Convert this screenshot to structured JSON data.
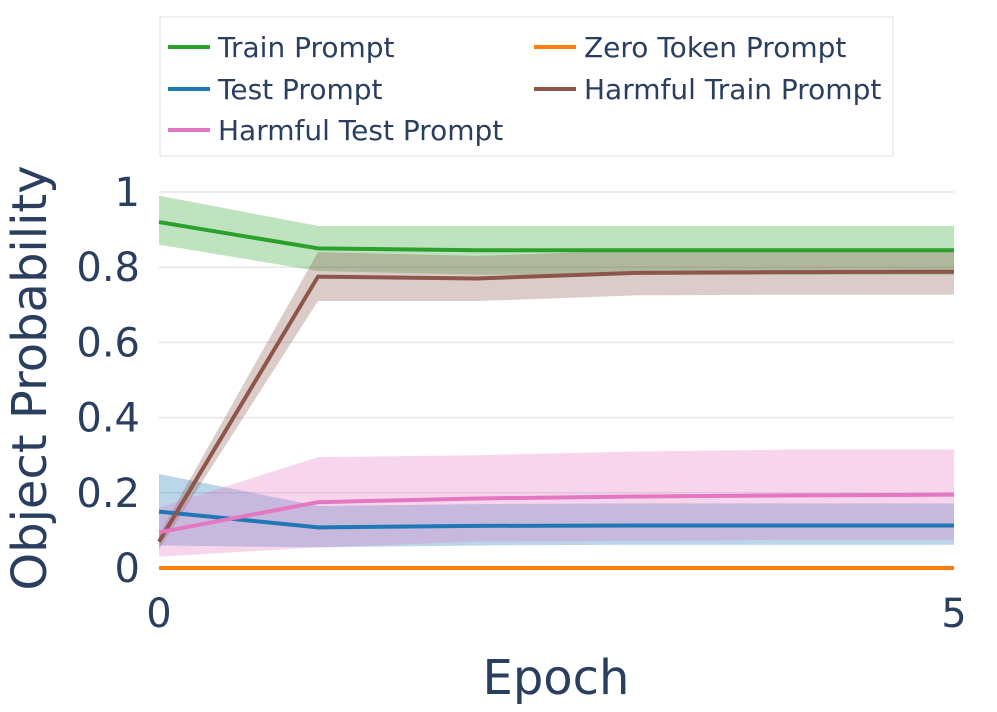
{
  "chart_data": {
    "type": "line",
    "xlabel": "Epoch",
    "ylabel": "Object Probability",
    "xlim": [
      0,
      5
    ],
    "ylim": [
      0,
      1
    ],
    "x_ticks": [
      {
        "value": 0,
        "label": "0"
      },
      {
        "value": 5,
        "label": "5"
      }
    ],
    "y_ticks": [
      {
        "value": 0,
        "label": "0"
      },
      {
        "value": 0.2,
        "label": "0.2"
      },
      {
        "value": 0.4,
        "label": "0.4"
      },
      {
        "value": 0.6,
        "label": "0.6"
      },
      {
        "value": 0.8,
        "label": "0.8"
      },
      {
        "value": 1,
        "label": "1"
      }
    ],
    "grid": true,
    "legend_position": "top",
    "x": [
      0,
      1,
      2,
      3,
      4,
      5
    ],
    "series": [
      {
        "name": "Train Prompt",
        "color": "#2ca02c",
        "values": [
          0.92,
          0.85,
          0.845,
          0.845,
          0.845,
          0.845
        ],
        "lower": [
          0.86,
          0.79,
          0.78,
          0.78,
          0.78,
          0.78
        ],
        "upper": [
          0.99,
          0.91,
          0.91,
          0.91,
          0.91,
          0.91
        ]
      },
      {
        "name": "Zero Token Prompt",
        "color": "#ff7f0e",
        "values": [
          0.0,
          0.0,
          0.0,
          0.0,
          0.0,
          0.0
        ],
        "lower": [
          0.0,
          0.0,
          0.0,
          0.0,
          0.0,
          0.0
        ],
        "upper": [
          0.0,
          0.0,
          0.0,
          0.0,
          0.0,
          0.0
        ]
      },
      {
        "name": "Test Prompt",
        "color": "#1f77b4",
        "values": [
          0.15,
          0.108,
          0.112,
          0.113,
          0.113,
          0.113
        ],
        "lower": [
          0.06,
          0.055,
          0.06,
          0.062,
          0.062,
          0.062
        ],
        "upper": [
          0.25,
          0.165,
          0.17,
          0.172,
          0.172,
          0.172
        ]
      },
      {
        "name": "Harmful Train Prompt",
        "color": "#8c564b",
        "values": [
          0.07,
          0.775,
          0.77,
          0.785,
          0.787,
          0.788
        ],
        "lower": [
          0.05,
          0.71,
          0.71,
          0.725,
          0.727,
          0.727
        ],
        "upper": [
          0.09,
          0.84,
          0.83,
          0.845,
          0.847,
          0.847
        ]
      },
      {
        "name": "Harmful Test Prompt",
        "color": "#e377c2",
        "values": [
          0.095,
          0.175,
          0.185,
          0.19,
          0.193,
          0.195
        ],
        "lower": [
          0.03,
          0.055,
          0.07,
          0.072,
          0.075,
          0.075
        ],
        "upper": [
          0.16,
          0.295,
          0.3,
          0.31,
          0.315,
          0.315
        ]
      }
    ]
  }
}
